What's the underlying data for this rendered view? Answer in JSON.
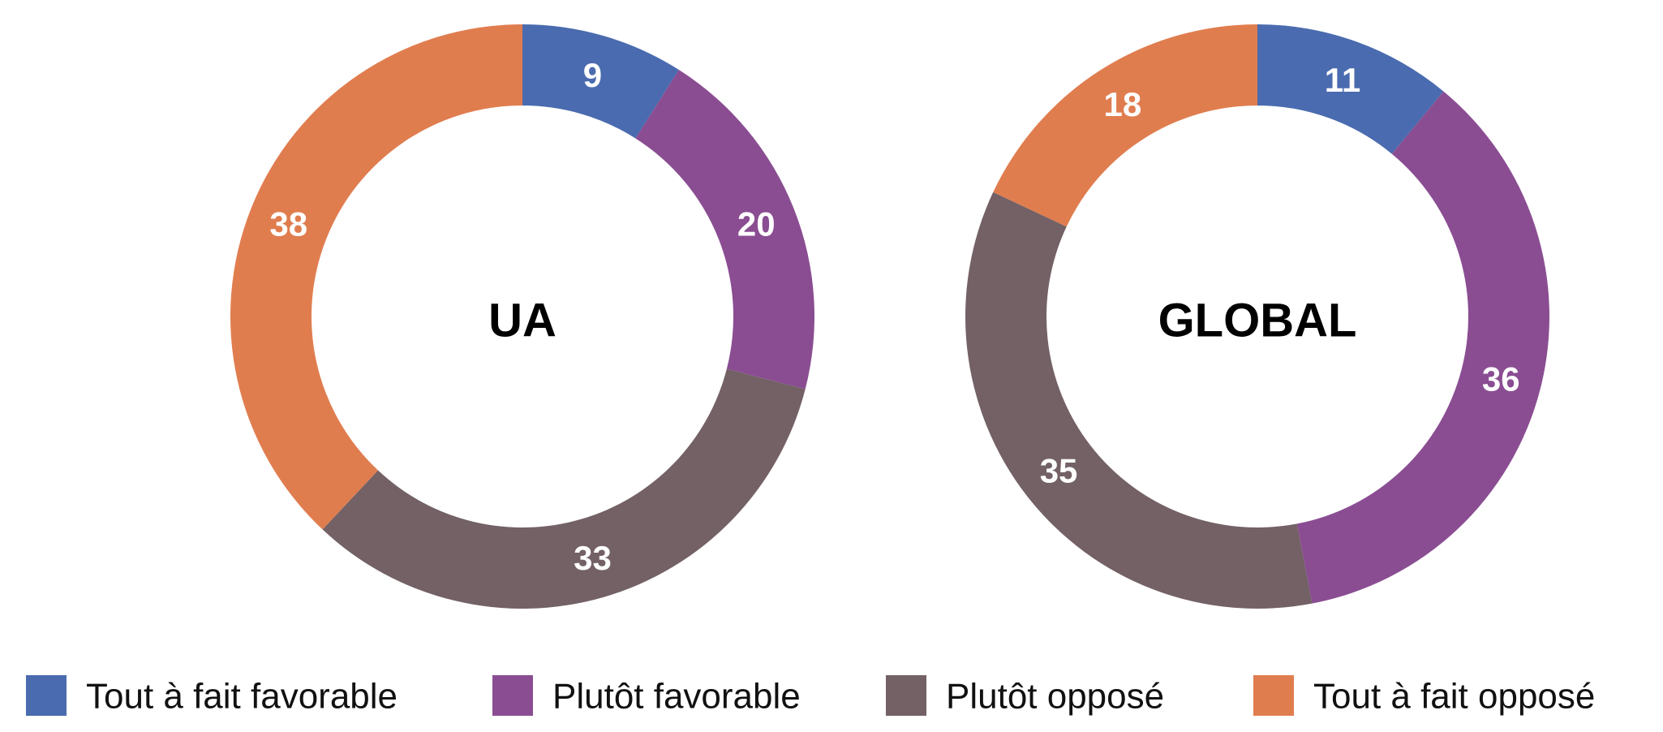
{
  "chart_data": [
    {
      "type": "donut",
      "title": "UA",
      "categories": [
        "Tout à fait favorable",
        "Plutôt favorable",
        "Plutôt opposé",
        "Tout à fait opposé"
      ],
      "values": [
        9,
        20,
        33,
        38
      ],
      "colors": [
        "#4a6baf",
        "#8a4d92",
        "#736165",
        "#e07d4f"
      ]
    },
    {
      "type": "donut",
      "title": "GLOBAL",
      "categories": [
        "Tout à fait favorable",
        "Plutôt favorable",
        "Plutôt opposé",
        "Tout à fait opposé"
      ],
      "values": [
        11,
        36,
        35,
        18
      ],
      "colors": [
        "#4a6baf",
        "#8a4d92",
        "#736165",
        "#e07d4f"
      ]
    }
  ]
}
